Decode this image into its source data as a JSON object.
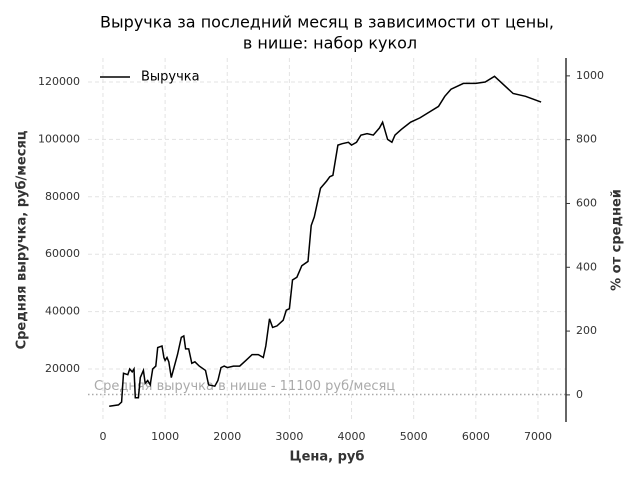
{
  "chart_data": {
    "type": "line",
    "title": [
      "Выручка за последний месяц в зависимости от цены,",
      "в нише: набор кукол"
    ],
    "x_label": "Цена, руб",
    "y_label": "Средняя выручка, руб/месяц",
    "y2_label": "% от средней",
    "x": [
      100,
      250,
      300,
      330,
      400,
      430,
      470,
      500,
      520,
      570,
      600,
      650,
      680,
      720,
      760,
      800,
      850,
      880,
      950,
      980,
      1000,
      1030,
      1060,
      1100,
      1150,
      1200,
      1260,
      1300,
      1330,
      1380,
      1430,
      1480,
      1550,
      1650,
      1700,
      1800,
      1850,
      1900,
      1950,
      2000,
      2100,
      2200,
      2300,
      2400,
      2500,
      2580,
      2620,
      2680,
      2730,
      2800,
      2900,
      2950,
      3000,
      3050,
      3120,
      3200,
      3300,
      3350,
      3400,
      3500,
      3600,
      3650,
      3700,
      3780,
      3850,
      3950,
      4000,
      4080,
      4150,
      4250,
      4350,
      4450,
      4500,
      4580,
      4650,
      4700,
      4800,
      4950,
      5100,
      5250,
      5400,
      5500,
      5600,
      5800,
      6000,
      6150,
      6300,
      6600,
      6800,
      7050
    ],
    "series": [
      {
        "name": "Выручка",
        "color": "#000000",
        "values": [
          7000,
          7500,
          8500,
          18500,
          18000,
          20000,
          19000,
          20000,
          10000,
          10000,
          17000,
          19500,
          15000,
          16000,
          14500,
          20000,
          21000,
          27500,
          28000,
          24000,
          23000,
          24000,
          22500,
          17000,
          21000,
          25000,
          31000,
          31500,
          27000,
          27000,
          22000,
          22500,
          21000,
          19500,
          14500,
          14000,
          16000,
          20500,
          21000,
          20500,
          21000,
          21000,
          23000,
          25000,
          25000,
          24000,
          28000,
          37500,
          34500,
          35000,
          37000,
          40500,
          41000,
          51000,
          52000,
          56000,
          57500,
          70000,
          73000,
          83000,
          85500,
          87000,
          87500,
          98000,
          98500,
          99000,
          98000,
          99000,
          101500,
          102000,
          101500,
          104000,
          106000,
          100000,
          99000,
          101500,
          103500,
          106000,
          107500,
          109500,
          111500,
          115000,
          117500,
          119500,
          119500,
          120000,
          122000,
          116000,
          115000,
          113000
        ]
      }
    ],
    "reference_line": {
      "value": 11100,
      "label": "Средняя выручка в нише - 11100 руб/месяц",
      "color": "#aaaaaa"
    },
    "xlim": [
      -241,
      7451
    ],
    "ylim": [
      1533,
      128362
    ],
    "y2lim": [
      -85,
      1056
    ],
    "xticks": [
      0,
      1000,
      2000,
      3000,
      4000,
      5000,
      6000,
      7000
    ],
    "yticks": [
      20000,
      40000,
      60000,
      80000,
      100000,
      120000
    ],
    "y2ticks": [
      0,
      200,
      400,
      600,
      800,
      1000
    ],
    "grid": true,
    "legend": "upper left"
  }
}
